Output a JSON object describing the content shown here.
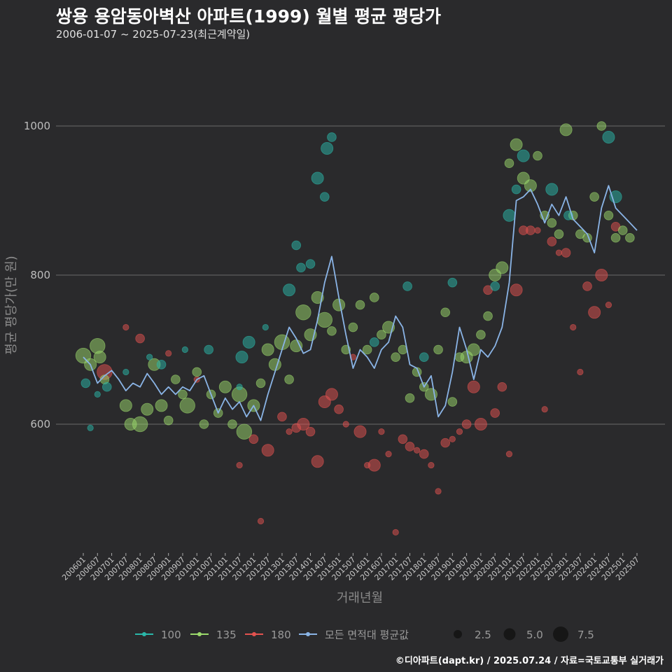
{
  "header": {
    "title": "쌍용 용암동아벽산 아파트(1999) 월별 평균 평당가",
    "subtitle": "2006-01-07 ~ 2025-07-23(최근계약일)"
  },
  "footer": {
    "credit": "©디아파트(dapt.kr) / 2025.07.24 / 자료=국토교통부 실거래가"
  },
  "colors": {
    "background": "#2a2a2c",
    "grid": "#6a6a6a",
    "series_100": "#2ab7a9",
    "series_135": "#9bd96b",
    "series_180": "#e3524f",
    "series_avg": "#8ab4e6"
  },
  "chart_data": {
    "type": "scatter",
    "xlabel": "거래년월",
    "ylabel": "평균 평당가(만 원)",
    "ylim": [
      430,
      1090
    ],
    "y_ticks": [
      600,
      800,
      1000
    ],
    "x_tick_labels": [
      "200601",
      "200607",
      "200701",
      "200707",
      "200801",
      "200807",
      "200901",
      "200907",
      "201001",
      "201007",
      "201101",
      "201107",
      "201201",
      "201207",
      "201301",
      "201307",
      "201401",
      "201407",
      "201501",
      "201507",
      "201601",
      "201607",
      "201701",
      "201707",
      "201801",
      "201807",
      "201901",
      "201907",
      "202001",
      "202007",
      "202101",
      "202107",
      "202201",
      "202207",
      "202301",
      "202307",
      "202401",
      "202407",
      "202501",
      "202507"
    ],
    "legend": {
      "series_labels": [
        "100",
        "135",
        "180",
        "모든 면적대 평균값"
      ],
      "size_labels": [
        "2.5",
        "5.0",
        "7.5"
      ],
      "placement": "bottom"
    },
    "average_line": {
      "name": "모든 면적대 평균값",
      "points": [
        [
          "200601",
          690
        ],
        [
          "200604",
          680
        ],
        [
          "200607",
          655
        ],
        [
          "200610",
          665
        ],
        [
          "200701",
          672
        ],
        [
          "200704",
          660
        ],
        [
          "200707",
          645
        ],
        [
          "200710",
          655
        ],
        [
          "200801",
          650
        ],
        [
          "200804",
          668
        ],
        [
          "200807",
          655
        ],
        [
          "200810",
          640
        ],
        [
          "200901",
          650
        ],
        [
          "200904",
          640
        ],
        [
          "200907",
          650
        ],
        [
          "200910",
          645
        ],
        [
          "201001",
          660
        ],
        [
          "201004",
          665
        ],
        [
          "201007",
          640
        ],
        [
          "201010",
          615
        ],
        [
          "201101",
          635
        ],
        [
          "201104",
          620
        ],
        [
          "201107",
          630
        ],
        [
          "201110",
          610
        ],
        [
          "201201",
          625
        ],
        [
          "201204",
          605
        ],
        [
          "201207",
          640
        ],
        [
          "201210",
          670
        ],
        [
          "201301",
          700
        ],
        [
          "201304",
          730
        ],
        [
          "201307",
          715
        ],
        [
          "201310",
          695
        ],
        [
          "201401",
          700
        ],
        [
          "201404",
          740
        ],
        [
          "201407",
          790
        ],
        [
          "201410",
          825
        ],
        [
          "201501",
          770
        ],
        [
          "201504",
          720
        ],
        [
          "201507",
          675
        ],
        [
          "201510",
          700
        ],
        [
          "201601",
          690
        ],
        [
          "201604",
          675
        ],
        [
          "201607",
          700
        ],
        [
          "201610",
          710
        ],
        [
          "201701",
          745
        ],
        [
          "201704",
          730
        ],
        [
          "201707",
          680
        ],
        [
          "201710",
          675
        ],
        [
          "201801",
          650
        ],
        [
          "201804",
          665
        ],
        [
          "201807",
          610
        ],
        [
          "201810",
          625
        ],
        [
          "201901",
          670
        ],
        [
          "201904",
          730
        ],
        [
          "201907",
          700
        ],
        [
          "201910",
          660
        ],
        [
          "202001",
          700
        ],
        [
          "202004",
          690
        ],
        [
          "202007",
          705
        ],
        [
          "202010",
          730
        ],
        [
          "202101",
          790
        ],
        [
          "202104",
          900
        ],
        [
          "202107",
          905
        ],
        [
          "202110",
          915
        ],
        [
          "202201",
          895
        ],
        [
          "202204",
          870
        ],
        [
          "202207",
          895
        ],
        [
          "202210",
          880
        ],
        [
          "202301",
          905
        ],
        [
          "202304",
          875
        ],
        [
          "202307",
          865
        ],
        [
          "202310",
          855
        ],
        [
          "202401",
          830
        ],
        [
          "202404",
          890
        ],
        [
          "202407",
          920
        ],
        [
          "202410",
          890
        ],
        [
          "202501",
          880
        ],
        [
          "202504",
          870
        ],
        [
          "202507",
          860
        ]
      ]
    },
    "series": [
      {
        "name": "100",
        "points": [
          [
            "200602",
            655,
            3
          ],
          [
            "200604",
            595,
            2
          ],
          [
            "200607",
            640,
            2
          ],
          [
            "200611",
            650,
            3
          ],
          [
            "200707",
            670,
            2
          ],
          [
            "200805",
            690,
            2
          ],
          [
            "200810",
            680,
            3
          ],
          [
            "200908",
            700,
            2
          ],
          [
            "201006",
            700,
            3
          ],
          [
            "201107",
            650,
            2
          ],
          [
            "201108",
            690,
            4
          ],
          [
            "201111",
            710,
            4
          ],
          [
            "201206",
            730,
            2
          ],
          [
            "201304",
            780,
            4
          ],
          [
            "201307",
            840,
            3
          ],
          [
            "201309",
            810,
            3
          ],
          [
            "201401",
            815,
            3
          ],
          [
            "201404",
            930,
            4
          ],
          [
            "201407",
            905,
            3
          ],
          [
            "201408",
            970,
            4
          ],
          [
            "201410",
            985,
            3
          ],
          [
            "201604",
            710,
            3
          ],
          [
            "201706",
            785,
            3
          ],
          [
            "201801",
            690,
            3
          ],
          [
            "201901",
            790,
            3
          ],
          [
            "202007",
            785,
            3
          ],
          [
            "202101",
            880,
            4
          ],
          [
            "202104",
            915,
            3
          ],
          [
            "202107",
            960,
            4
          ],
          [
            "202207",
            915,
            4
          ],
          [
            "202302",
            880,
            3
          ],
          [
            "202407",
            985,
            4
          ],
          [
            "202410",
            905,
            4
          ]
        ]
      },
      {
        "name": "135",
        "points": [
          [
            "200601",
            692,
            5
          ],
          [
            "200604",
            680,
            4
          ],
          [
            "200607",
            705,
            5
          ],
          [
            "200608",
            690,
            4
          ],
          [
            "200610",
            660,
            3
          ],
          [
            "200707",
            625,
            4
          ],
          [
            "200709",
            600,
            4
          ],
          [
            "200801",
            600,
            5
          ],
          [
            "200804",
            620,
            4
          ],
          [
            "200807",
            680,
            4
          ],
          [
            "200810",
            625,
            4
          ],
          [
            "200901",
            605,
            3
          ],
          [
            "200904",
            660,
            3
          ],
          [
            "200907",
            640,
            3
          ],
          [
            "200909",
            625,
            5
          ],
          [
            "201001",
            670,
            3
          ],
          [
            "201004",
            600,
            3
          ],
          [
            "201007",
            640,
            3
          ],
          [
            "201010",
            615,
            3
          ],
          [
            "201101",
            650,
            4
          ],
          [
            "201104",
            600,
            3
          ],
          [
            "201107",
            640,
            5
          ],
          [
            "201109",
            590,
            5
          ],
          [
            "201201",
            625,
            4
          ],
          [
            "201204",
            655,
            3
          ],
          [
            "201207",
            700,
            4
          ],
          [
            "201210",
            680,
            4
          ],
          [
            "201301",
            710,
            5
          ],
          [
            "201304",
            660,
            3
          ],
          [
            "201307",
            705,
            4
          ],
          [
            "201310",
            750,
            5
          ],
          [
            "201401",
            720,
            4
          ],
          [
            "201404",
            770,
            4
          ],
          [
            "201407",
            740,
            5
          ],
          [
            "201410",
            725,
            3
          ],
          [
            "201501",
            760,
            4
          ],
          [
            "201504",
            700,
            3
          ],
          [
            "201507",
            730,
            3
          ],
          [
            "201510",
            760,
            3
          ],
          [
            "201601",
            700,
            3
          ],
          [
            "201604",
            770,
            3
          ],
          [
            "201607",
            720,
            3
          ],
          [
            "201610",
            730,
            4
          ],
          [
            "201701",
            690,
            3
          ],
          [
            "201704",
            700,
            3
          ],
          [
            "201707",
            635,
            3
          ],
          [
            "201710",
            670,
            3
          ],
          [
            "201801",
            650,
            3
          ],
          [
            "201804",
            640,
            4
          ],
          [
            "201807",
            700,
            3
          ],
          [
            "201810",
            750,
            3
          ],
          [
            "201901",
            630,
            3
          ],
          [
            "201904",
            690,
            3
          ],
          [
            "201907",
            690,
            4
          ],
          [
            "201910",
            700,
            4
          ],
          [
            "202001",
            720,
            3
          ],
          [
            "202004",
            745,
            3
          ],
          [
            "202007",
            800,
            4
          ],
          [
            "202010",
            810,
            4
          ],
          [
            "202101",
            950,
            3
          ],
          [
            "202104",
            975,
            4
          ],
          [
            "202107",
            930,
            4
          ],
          [
            "202110",
            920,
            4
          ],
          [
            "202201",
            960,
            3
          ],
          [
            "202204",
            880,
            3
          ],
          [
            "202207",
            870,
            3
          ],
          [
            "202210",
            855,
            3
          ],
          [
            "202301",
            995,
            4
          ],
          [
            "202304",
            880,
            3
          ],
          [
            "202307",
            855,
            3
          ],
          [
            "202310",
            850,
            3
          ],
          [
            "202401",
            905,
            3
          ],
          [
            "202404",
            1000,
            3
          ],
          [
            "202407",
            880,
            3
          ],
          [
            "202410",
            850,
            3
          ],
          [
            "202501",
            860,
            3
          ],
          [
            "202504",
            850,
            3
          ]
        ]
      },
      {
        "name": "180",
        "points": [
          [
            "200610",
            670,
            5
          ],
          [
            "200707",
            730,
            2
          ],
          [
            "200801",
            715,
            3
          ],
          [
            "200901",
            695,
            2
          ],
          [
            "201001",
            660,
            2
          ],
          [
            "201107",
            545,
            2
          ],
          [
            "201201",
            580,
            3
          ],
          [
            "201204",
            470,
            2
          ],
          [
            "201207",
            565,
            4
          ],
          [
            "201301",
            610,
            3
          ],
          [
            "201304",
            590,
            2
          ],
          [
            "201307",
            595,
            3
          ],
          [
            "201310",
            600,
            4
          ],
          [
            "201401",
            590,
            3
          ],
          [
            "201404",
            550,
            4
          ],
          [
            "201407",
            630,
            4
          ],
          [
            "201410",
            640,
            4
          ],
          [
            "201501",
            620,
            3
          ],
          [
            "201504",
            600,
            2
          ],
          [
            "201507",
            690,
            2
          ],
          [
            "201510",
            590,
            4
          ],
          [
            "201601",
            545,
            2
          ],
          [
            "201604",
            545,
            4
          ],
          [
            "201607",
            590,
            2
          ],
          [
            "201610",
            560,
            2
          ],
          [
            "201701",
            455,
            2
          ],
          [
            "201704",
            580,
            3
          ],
          [
            "201707",
            570,
            3
          ],
          [
            "201710",
            565,
            2
          ],
          [
            "201801",
            560,
            3
          ],
          [
            "201804",
            545,
            2
          ],
          [
            "201807",
            510,
            2
          ],
          [
            "201810",
            575,
            3
          ],
          [
            "201901",
            580,
            2
          ],
          [
            "201904",
            590,
            2
          ],
          [
            "201907",
            600,
            3
          ],
          [
            "201910",
            650,
            4
          ],
          [
            "202001",
            600,
            4
          ],
          [
            "202004",
            780,
            3
          ],
          [
            "202007",
            615,
            3
          ],
          [
            "202010",
            650,
            3
          ],
          [
            "202101",
            560,
            2
          ],
          [
            "202104",
            780,
            4
          ],
          [
            "202107",
            860,
            3
          ],
          [
            "202110",
            860,
            3
          ],
          [
            "202201",
            860,
            2
          ],
          [
            "202204",
            620,
            2
          ],
          [
            "202207",
            845,
            3
          ],
          [
            "202210",
            830,
            2
          ],
          [
            "202301",
            830,
            3
          ],
          [
            "202304",
            730,
            2
          ],
          [
            "202307",
            670,
            2
          ],
          [
            "202310",
            785,
            3
          ],
          [
            "202401",
            750,
            4
          ],
          [
            "202404",
            800,
            4
          ],
          [
            "202407",
            760,
            2
          ],
          [
            "202410",
            865,
            3
          ]
        ]
      }
    ]
  }
}
